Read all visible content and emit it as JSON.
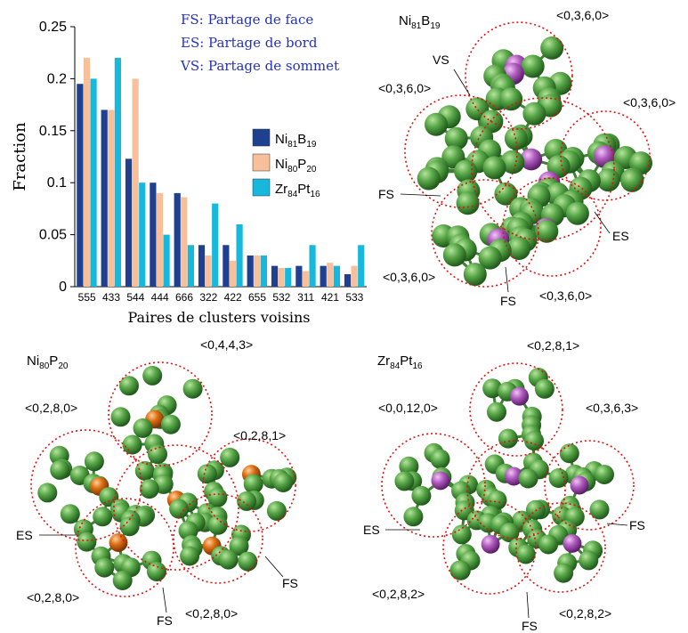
{
  "chart_data": {
    "type": "bar",
    "title": "",
    "xlabel": "Paires de clusters voisins",
    "ylabel": "Fraction",
    "ylim": [
      0,
      0.25
    ],
    "yticks": [
      "0",
      "0.05",
      "0.1",
      "0.15",
      "0.2",
      "0.25"
    ],
    "categories": [
      "555",
      "433",
      "544",
      "444",
      "666",
      "322",
      "422",
      "655",
      "532",
      "311",
      "421",
      "533"
    ],
    "series": [
      {
        "name": "Ni81B19",
        "label_base": "Ni",
        "sub1": "81",
        "label_mid": "B",
        "sub2": "19",
        "color": "#1f3f8f",
        "values": [
          0.195,
          0.17,
          0.123,
          0.1,
          0.09,
          0.04,
          0.04,
          0.03,
          0.02,
          0.02,
          0.02,
          0.012
        ]
      },
      {
        "name": "Ni80P20",
        "label_base": "Ni",
        "sub1": "80",
        "label_mid": "P",
        "sub2": "20",
        "color": "#f7c09a",
        "values": [
          0.22,
          0.17,
          0.2,
          0.09,
          0.086,
          0.03,
          0.025,
          0.03,
          0.018,
          0.015,
          0.023,
          0.02
        ]
      },
      {
        "name": "Zr84Pt16",
        "label_base": "Zr",
        "sub1": "84",
        "label_mid": "Pt",
        "sub2": "16",
        "color": "#18b8dc",
        "values": [
          0.2,
          0.22,
          0.1,
          0.05,
          0.04,
          0.08,
          0.06,
          0.03,
          0.018,
          0.04,
          0.02,
          0.04
        ]
      }
    ],
    "legend_position": "right"
  },
  "annotations": [
    "FS: Partage de face",
    "ES: Partage de bord",
    "VS: Partage de sommet"
  ],
  "panels": {
    "nib": {
      "base": "Ni",
      "s1": "81",
      "mid": "B",
      "s2": "19",
      "labels": [
        "<0,3,6,0>",
        "VS",
        "<0,3,6,0>",
        "<0,3,6,0>",
        "FS",
        "ES",
        "<0,3,6,0>",
        "FS",
        "<0,3,6,0>"
      ]
    },
    "nip": {
      "base": "Ni",
      "s1": "80",
      "mid": "P",
      "s2": "20",
      "labels": [
        "<0,4,4,3>",
        "<0,2,8,0>",
        "<0,2,8,1>",
        "ES",
        "FS",
        "<0,2,8,0>",
        "FS",
        "<0,2,8,0>"
      ]
    },
    "zrpt": {
      "base": "Zr",
      "s1": "84",
      "mid": "Pt",
      "s2": "16",
      "labels": [
        "<0,2,8,1>",
        "<0,0,12,0>",
        "<0,3,6,3>",
        "ES",
        "FS",
        "<0,2,8,2>",
        "FS",
        "<0,2,8,2>"
      ]
    }
  },
  "colors": {
    "atom_green": "#4a9a3e",
    "atom_purple": "#a04ab0",
    "atom_orange": "#d86a10",
    "cluster_outline": "#e01010",
    "annotation_text": "#2430c8"
  }
}
